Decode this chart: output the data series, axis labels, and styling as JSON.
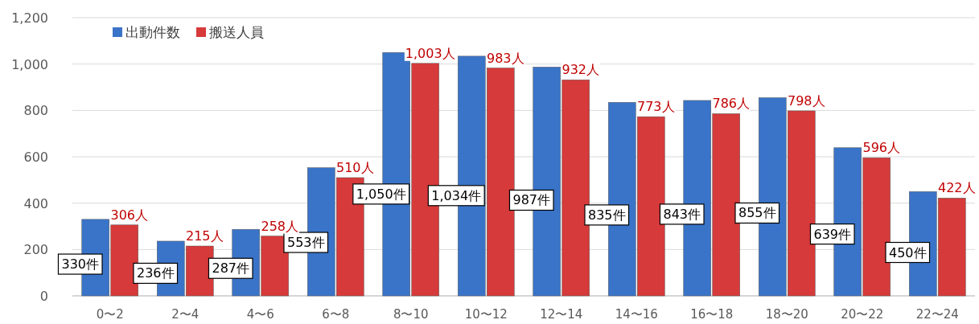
{
  "chart_data": {
    "type": "bar",
    "categories": [
      "0〜2",
      "2〜4",
      "4〜6",
      "6〜8",
      "8〜10",
      "10〜12",
      "12〜14",
      "14〜16",
      "16〜18",
      "18〜20",
      "20〜22",
      "22〜24"
    ],
    "series": [
      {
        "name": "出動件数",
        "color": "#3a74c8",
        "values": [
          330,
          236,
          287,
          553,
          1050,
          1034,
          987,
          835,
          843,
          855,
          639,
          450
        ],
        "value_labels": [
          "330件",
          "236件",
          "287件",
          "553件",
          "1,050件",
          "1,034件",
          "987件",
          "835件",
          "843件",
          "855件",
          "639件",
          "450件"
        ]
      },
      {
        "name": "搬送人員",
        "color": "#d63a3a",
        "values": [
          306,
          215,
          258,
          510,
          1003,
          983,
          932,
          773,
          786,
          798,
          596,
          422
        ],
        "value_labels": [
          "306人",
          "215人",
          "258人",
          "510人",
          "1,003人",
          "983人",
          "932人",
          "773人",
          "786人",
          "798人",
          "596人",
          "422人"
        ]
      }
    ],
    "ylim": [
      0,
      1200
    ],
    "yticks": [
      0,
      200,
      400,
      600,
      800,
      {
        "value": 1000,
        "label": "1,000"
      },
      {
        "value": 1200,
        "label": "1,200"
      }
    ],
    "grid": "y",
    "legend": "top left"
  }
}
